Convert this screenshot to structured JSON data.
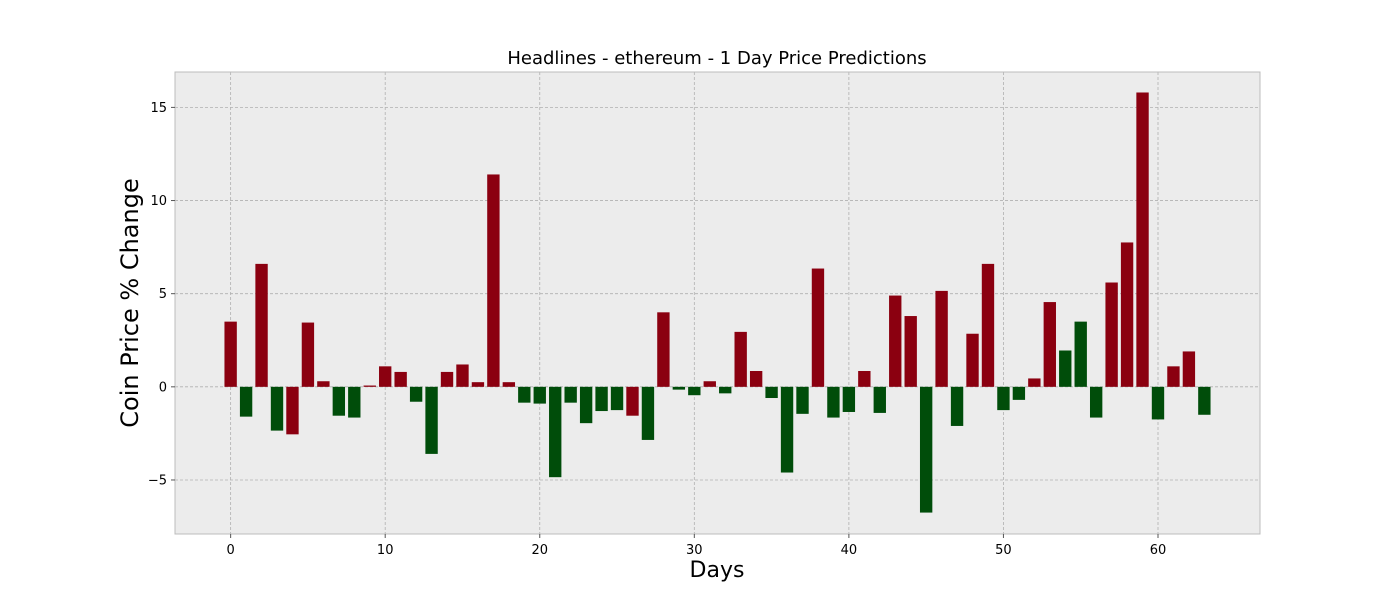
{
  "chart_data": {
    "type": "bar",
    "title": "Headlines - ethereum - 1 Day Price Predictions",
    "xlabel": "Days",
    "ylabel": "Coin Price % Change",
    "xlim": [
      -3.6,
      66.6
    ],
    "ylim": [
      -7.9,
      16.9
    ],
    "xticks": [
      0,
      10,
      20,
      30,
      40,
      50,
      60
    ],
    "yticks": [
      -5,
      0,
      5,
      10,
      15
    ],
    "ytick_labels": [
      "−5",
      "0",
      "5",
      "10",
      "15"
    ],
    "grid": true,
    "legend": "none",
    "bar_width": 0.8,
    "series": [
      {
        "x": [
          0,
          1,
          2,
          3,
          4,
          5,
          6,
          7,
          8,
          9,
          10,
          11,
          12,
          13,
          14,
          15,
          16,
          17,
          18,
          19,
          20,
          21,
          22,
          23,
          24,
          25,
          26,
          27,
          28,
          29,
          30,
          31,
          32,
          33,
          34,
          35,
          36,
          37,
          38,
          39,
          40,
          41,
          42,
          43,
          44,
          45,
          46,
          47,
          48,
          49,
          50,
          51,
          52,
          53,
          54,
          55,
          56,
          57,
          58,
          59,
          60,
          61,
          62,
          63
        ],
        "values": [
          3.5,
          -1.6,
          6.6,
          -2.35,
          -2.55,
          3.45,
          0.3,
          -1.55,
          -1.65,
          0.07,
          1.1,
          0.8,
          -0.8,
          -3.6,
          0.8,
          1.2,
          0.25,
          11.4,
          0.25,
          -0.85,
          -0.9,
          -4.85,
          -0.85,
          -1.95,
          -1.3,
          -1.25,
          -1.55,
          -2.85,
          4.0,
          -0.15,
          -0.45,
          0.3,
          -0.35,
          2.95,
          0.85,
          -0.6,
          -4.6,
          -1.45,
          6.35,
          -1.65,
          -1.35,
          0.85,
          -1.4,
          4.9,
          3.8,
          -6.75,
          5.15,
          -2.1,
          2.85,
          6.6,
          -1.25,
          -0.7,
          0.45,
          4.55,
          1.95,
          3.5,
          -1.65,
          5.6,
          7.75,
          15.8,
          -1.75,
          1.1,
          1.9,
          -1.5
        ],
        "colors": [
          "#8b0010",
          "#004d0a",
          "#8b0010",
          "#004d0a",
          "#8b0010",
          "#8b0010",
          "#8b0010",
          "#004d0a",
          "#004d0a",
          "#8b0010",
          "#8b0010",
          "#8b0010",
          "#004d0a",
          "#004d0a",
          "#8b0010",
          "#8b0010",
          "#8b0010",
          "#8b0010",
          "#8b0010",
          "#004d0a",
          "#004d0a",
          "#004d0a",
          "#004d0a",
          "#004d0a",
          "#004d0a",
          "#004d0a",
          "#8b0010",
          "#004d0a",
          "#8b0010",
          "#004d0a",
          "#004d0a",
          "#8b0010",
          "#004d0a",
          "#8b0010",
          "#8b0010",
          "#004d0a",
          "#004d0a",
          "#004d0a",
          "#8b0010",
          "#004d0a",
          "#004d0a",
          "#8b0010",
          "#004d0a",
          "#8b0010",
          "#8b0010",
          "#004d0a",
          "#8b0010",
          "#004d0a",
          "#8b0010",
          "#8b0010",
          "#004d0a",
          "#004d0a",
          "#8b0010",
          "#8b0010",
          "#004d0a",
          "#004d0a",
          "#004d0a",
          "#8b0010",
          "#8b0010",
          "#8b0010",
          "#004d0a",
          "#8b0010",
          "#8b0010",
          "#004d0a"
        ]
      }
    ],
    "colors": {
      "up": "#8b0010",
      "down": "#004d0a",
      "plot_background": "#ececec",
      "plot_border": "#bcbcbc",
      "grid": "#b0b0b0"
    }
  }
}
